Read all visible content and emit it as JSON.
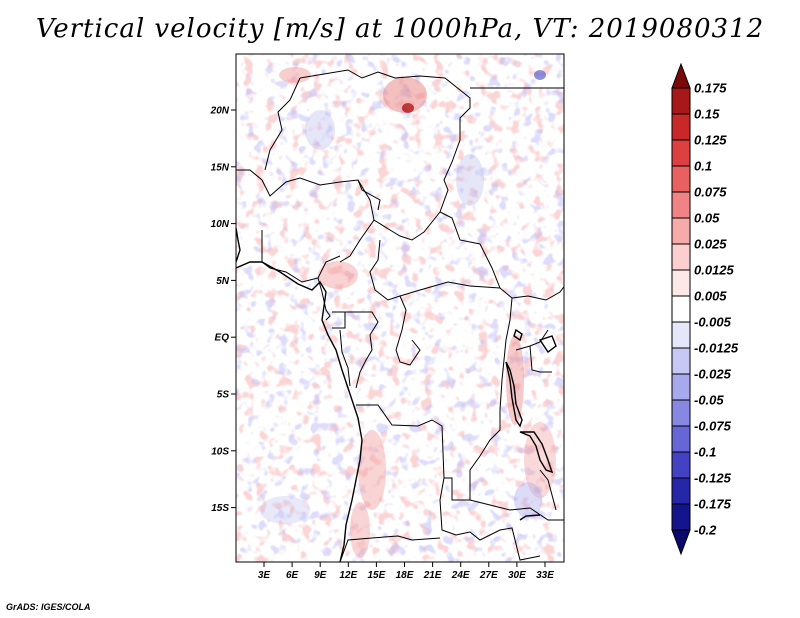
{
  "title": "Vertical velocity [m/s] at 1000hPa, VT: 2019080312",
  "credit": "GrADS: IGES/COLA",
  "axes": {
    "lat_labels": [
      "20N",
      "15N",
      "10N",
      "5N",
      "EQ",
      "5S",
      "10S",
      "15S"
    ],
    "lon_labels": [
      "3E",
      "6E",
      "9E",
      "12E",
      "15E",
      "18E",
      "21E",
      "24E",
      "27E",
      "30E",
      "33E"
    ]
  },
  "colorbar": {
    "labels": [
      "0.175",
      "0.15",
      "0.125",
      "0.1",
      "0.075",
      "0.05",
      "0.025",
      "0.0125",
      "0.005",
      "-0.005",
      "-0.0125",
      "-0.025",
      "-0.05",
      "-0.075",
      "-0.1",
      "-0.125",
      "-0.175",
      "-0.2"
    ],
    "colors": [
      "#7a0a0a",
      "#a81818",
      "#c82828",
      "#dc4040",
      "#e86060",
      "#f08484",
      "#f6aaaa",
      "#fbcfcf",
      "#fde8e8",
      "#ffffff",
      "#e6e6fb",
      "#c8c8f4",
      "#a8a8ec",
      "#8888e2",
      "#6666d6",
      "#4242c2",
      "#2626a8",
      "#14148c",
      "#0a0a6e"
    ]
  }
}
